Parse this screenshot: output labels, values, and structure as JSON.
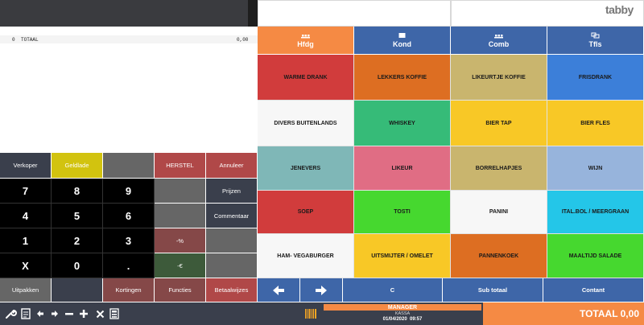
{
  "receipt": {
    "qty": "0",
    "label": "TOTAAL",
    "amount": "0,00"
  },
  "brand": {
    "logo": "tabby"
  },
  "tabs": [
    {
      "label": "Hfdg",
      "icon": "hfdg-icon",
      "color": "#f58a44"
    },
    {
      "label": "Kond",
      "icon": "kond-icon",
      "color": "#3e66a8"
    },
    {
      "label": "Comb",
      "icon": "comb-icon",
      "color": "#3e66a8"
    },
    {
      "label": "Tfls",
      "icon": "tfls-icon",
      "color": "#3e66a8"
    }
  ],
  "categories": [
    {
      "label": "WARME DRANK",
      "color": "#d13c3c"
    },
    {
      "label": "LEKKERS KOFFIE",
      "color": "#dd6e22"
    },
    {
      "label": "LIKEURTJE KOFFIE",
      "color": "#c9b56e"
    },
    {
      "label": "FRISDRANK",
      "color": "#3c7fd9"
    },
    {
      "label": "DIVERS BUITENLANDS",
      "color": "#f7f7f7"
    },
    {
      "label": "WHISKEY",
      "color": "#36bb78"
    },
    {
      "label": "BIER TAP",
      "color": "#f8c826"
    },
    {
      "label": "BIER FLES",
      "color": "#f8c826"
    },
    {
      "label": "JENEVERS",
      "color": "#7fb7b7"
    },
    {
      "label": "LIKEUR",
      "color": "#e06d84"
    },
    {
      "label": "BORRELHAPJES",
      "color": "#c9b56e"
    },
    {
      "label": "WIJN",
      "color": "#97b4dc"
    },
    {
      "label": "SOEP",
      "color": "#d13c3c"
    },
    {
      "label": "TOSTI",
      "color": "#46d82f"
    },
    {
      "label": "PANINI",
      "color": "#f7f7f7"
    },
    {
      "label": "ITAL.BOL / MEERGRAAN",
      "color": "#24c6e8"
    },
    {
      "label": "HAM- VEGABURGER",
      "color": "#f7f7f7"
    },
    {
      "label": "UITSMIJTER / OMELET",
      "color": "#f8c826"
    },
    {
      "label": "PANNENKOEK",
      "color": "#dd6e22"
    },
    {
      "label": "MAALTIJD SALADE",
      "color": "#46d82f"
    }
  ],
  "actions": {
    "verkoper": "Verkoper",
    "geldlade": "Geldlade",
    "herstel": "HERSTEL",
    "annuleer": "Annuleer",
    "prijzen": "Prijzen",
    "commentaar": "Commentaar",
    "percent": "-%",
    "euro": "-€",
    "uitpakken": "Uitpakken",
    "kortingen": "Kortingen",
    "functies": "Functies",
    "betaalwijzes": "Betaalwijzes"
  },
  "keypad": [
    "7",
    "8",
    "9",
    "4",
    "5",
    "6",
    "1",
    "2",
    "3",
    "X",
    "0",
    "."
  ],
  "nav": {
    "clear": "C",
    "subtotal": "Sub totaal",
    "cash": "Contant"
  },
  "status": {
    "user": "MANAGER",
    "register": "KASSA",
    "datetime": "01/04/2020  09:57",
    "total": "TOTAAL 0,00"
  },
  "colors": {
    "dark_panel": "#3a3f4c",
    "orange": "#f58a44",
    "blue": "#3e66a8",
    "maroon": "#854848",
    "gray": "#666666",
    "black_key": "#000000"
  }
}
